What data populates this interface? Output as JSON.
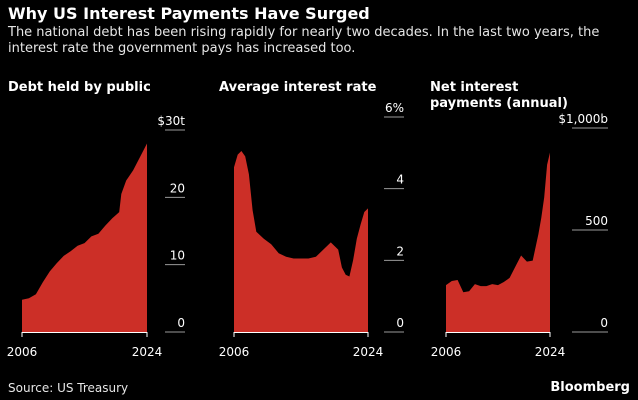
{
  "title": "Why US Interest Payments Have Surged",
  "subtitle": "The national debt has been rising rapidly for nearly two decades. In the last two years, the interest rate the government pays has increased too.",
  "source": "Source: US Treasury",
  "brand": "Bloomberg",
  "colors": {
    "fill": "#cc2f27",
    "tick": "#9a9a9a",
    "background": "#000000"
  },
  "chart_data": [
    {
      "type": "area",
      "title": "Debt held by public",
      "y_ticks": [
        "$30t",
        "20",
        "10",
        "0"
      ],
      "y_tick_values": [
        30,
        20,
        10,
        0
      ],
      "ylim": [
        0,
        30
      ],
      "x_ticks": [
        "2006",
        "2024"
      ],
      "xlim": [
        2006,
        2024
      ],
      "series": [
        {
          "x": [
            2006,
            2007,
            2008,
            2009,
            2010,
            2011,
            2012,
            2013,
            2014,
            2015,
            2016,
            2017,
            2018,
            2019,
            2020,
            2020.3,
            2021,
            2022,
            2023,
            2024
          ],
          "values": [
            4.8,
            5.0,
            5.6,
            7.4,
            9.0,
            10.2,
            11.3,
            12.0,
            12.8,
            13.2,
            14.2,
            14.6,
            15.8,
            16.9,
            17.8,
            20.5,
            22.5,
            24.0,
            26.0,
            28.0
          ]
        }
      ]
    },
    {
      "type": "area",
      "title": "Average interest rate",
      "y_ticks": [
        "6%",
        "4",
        "2",
        "0"
      ],
      "y_tick_values": [
        6,
        4,
        2,
        0
      ],
      "ylim": [
        0,
        6
      ],
      "x_ticks": [
        "2006",
        "2024"
      ],
      "xlim": [
        2006,
        2024
      ],
      "series": [
        {
          "x": [
            2006,
            2006.5,
            2007,
            2007.5,
            2008,
            2008.5,
            2009,
            2010,
            2011,
            2012,
            2013,
            2014,
            2015,
            2016,
            2017,
            2018,
            2019,
            2020,
            2020.5,
            2021,
            2021.5,
            2022,
            2022.5,
            2023,
            2023.5,
            2024
          ],
          "values": [
            4.6,
            4.95,
            5.05,
            4.9,
            4.4,
            3.4,
            2.8,
            2.6,
            2.45,
            2.2,
            2.1,
            2.05,
            2.05,
            2.05,
            2.1,
            2.3,
            2.5,
            2.3,
            1.8,
            1.6,
            1.55,
            2.0,
            2.6,
            3.0,
            3.35,
            3.45
          ]
        }
      ]
    },
    {
      "type": "area",
      "title": "Net interest payments (annual)",
      "y_ticks": [
        "$1,000b",
        "500",
        "0"
      ],
      "y_tick_values": [
        1000,
        500,
        0
      ],
      "ylim": [
        0,
        1000
      ],
      "x_ticks": [
        "2006",
        "2024"
      ],
      "xlim": [
        2006,
        2024
      ],
      "series": [
        {
          "x": [
            2006,
            2007,
            2008,
            2009,
            2010,
            2011,
            2012,
            2013,
            2014,
            2015,
            2016,
            2017,
            2018,
            2019,
            2020,
            2021,
            2022,
            2022.5,
            2023,
            2023.5,
            2024
          ],
          "values": [
            230,
            250,
            255,
            195,
            200,
            235,
            225,
            225,
            235,
            230,
            245,
            265,
            320,
            375,
            345,
            350,
            480,
            560,
            660,
            820,
            880
          ]
        }
      ]
    }
  ]
}
